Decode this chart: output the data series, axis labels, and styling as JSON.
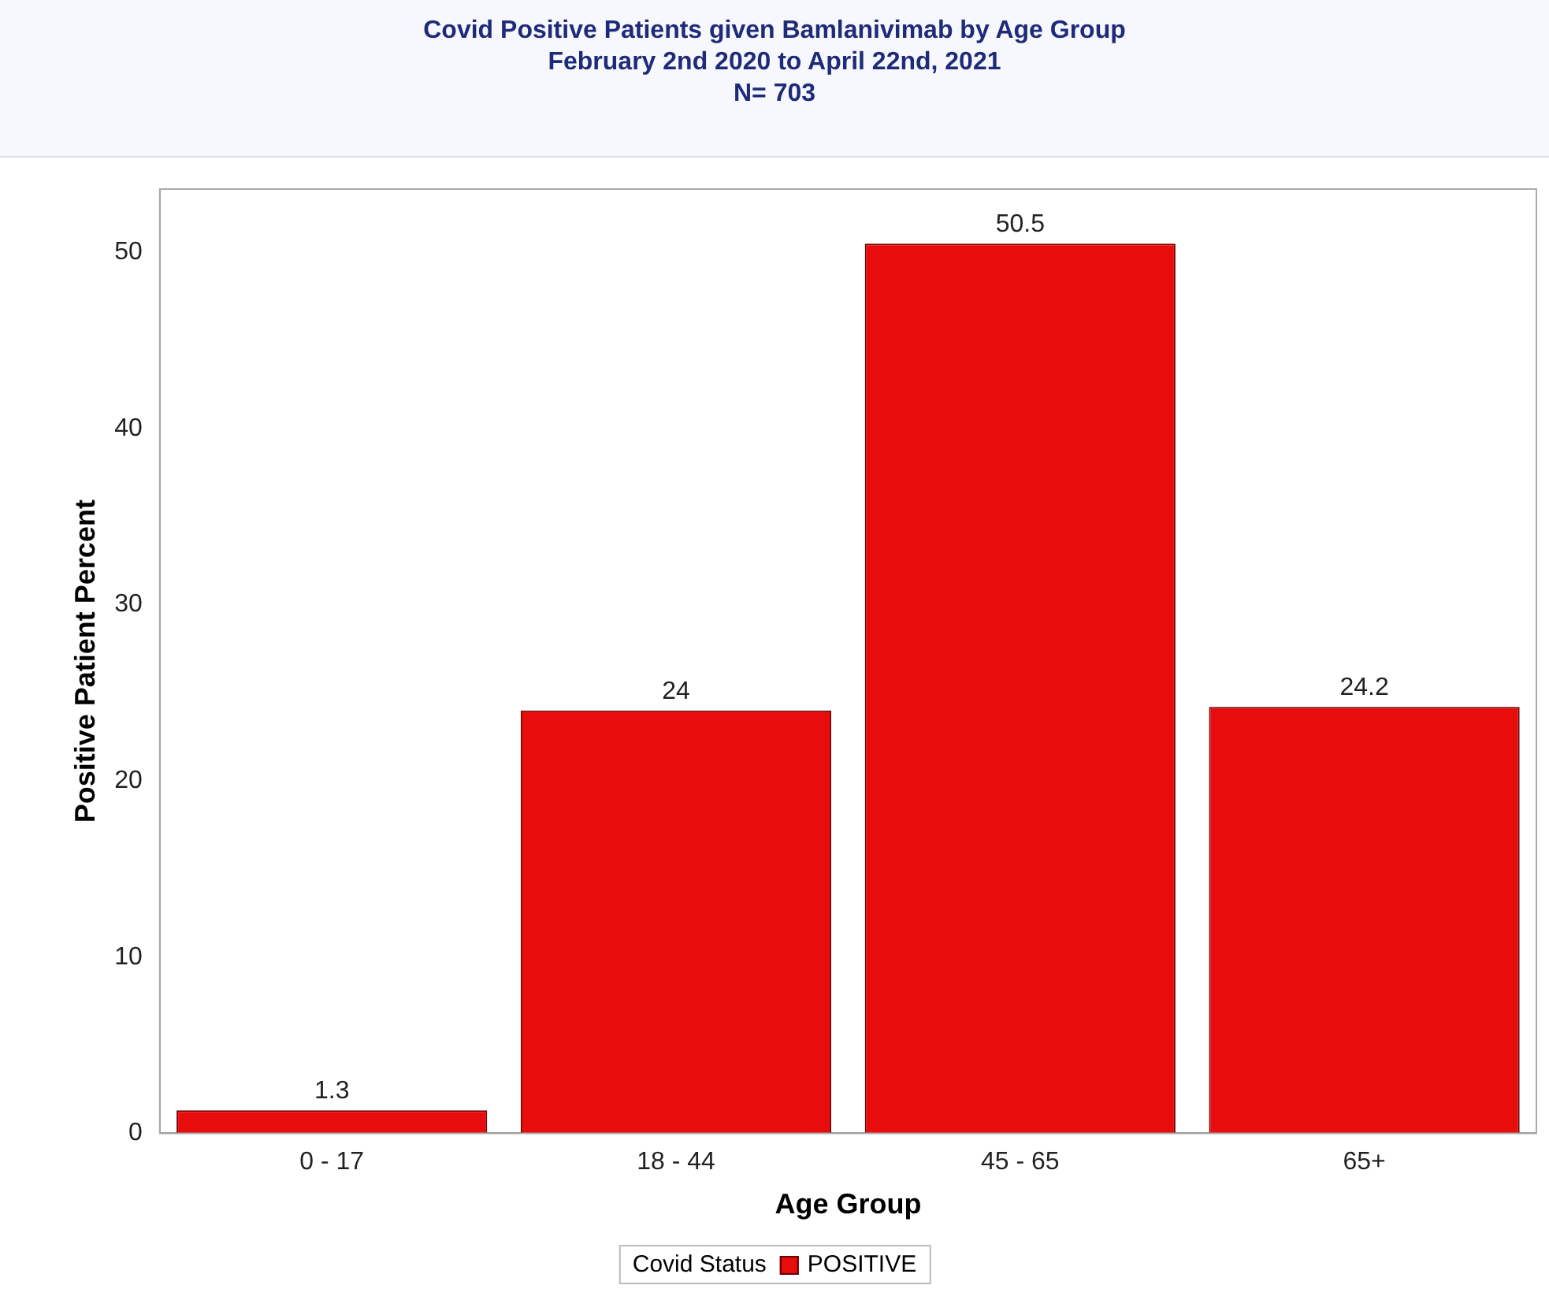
{
  "chart_data": {
    "type": "bar",
    "title": "Covid Positive Patients given Bamlanivimab by Age Group",
    "subtitle": "February 2nd 2020 to April 22nd, 2021",
    "annotations": [
      "N= 703"
    ],
    "xlabel": "Age Group",
    "ylabel": "Positive Patient Percent",
    "legend_title": "Covid Status",
    "categories": [
      "0 - 17",
      "18 - 44",
      "45 - 65",
      "65+"
    ],
    "series": [
      {
        "name": "POSITIVE",
        "color": "#e80c0c",
        "values": [
          1.3,
          24,
          50.5,
          24.2
        ]
      }
    ],
    "ylim": [
      0,
      53.6
    ],
    "yticks": [
      0,
      10,
      20,
      30,
      40,
      50
    ],
    "grid": false,
    "legend": "bottom",
    "data_labels": true
  }
}
